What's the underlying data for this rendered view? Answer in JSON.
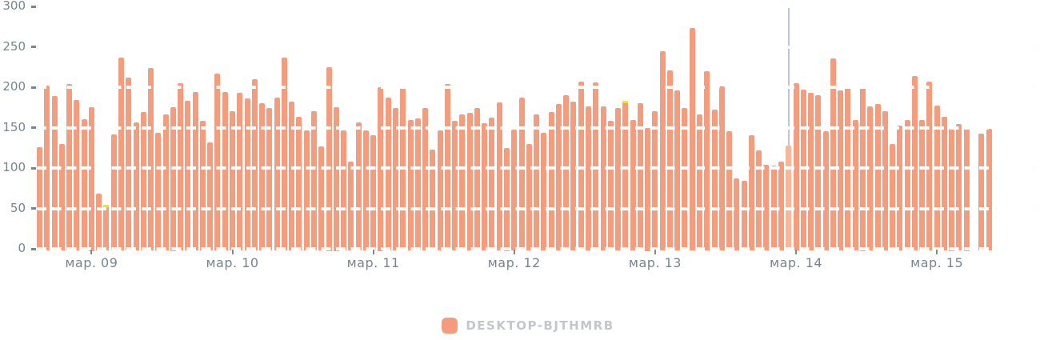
{
  "chart_data": {
    "type": "bar",
    "title": "",
    "xlabel": "",
    "ylabel": "",
    "ylim": [
      0,
      300
    ],
    "grid": "dashed-horizontal",
    "legend_position": "bottom-center",
    "y_ticks": [
      0,
      50,
      100,
      150,
      200,
      250,
      300
    ],
    "x_tick_labels": [
      "мар. 09",
      "мар. 10",
      "мар. 11",
      "мар. 12",
      "мар. 13",
      "мар. 14",
      "мар. 15"
    ],
    "x_tick_slots": [
      7,
      26,
      45,
      64,
      83,
      102,
      121
    ],
    "series": [
      {
        "name": "DESKTOP-BJTHMRB",
        "values": [
          126,
          202,
          189,
          130,
          204,
          184,
          160,
          175,
          68,
          53,
          142,
          237,
          212,
          156,
          169,
          224,
          144,
          166,
          175,
          205,
          183,
          194,
          158,
          132,
          217,
          194,
          170,
          193,
          186,
          210,
          180,
          174,
          187,
          237,
          182,
          163,
          147,
          170,
          127,
          225,
          175,
          147,
          108,
          156,
          147,
          141,
          200,
          187,
          174,
          199,
          159,
          161,
          174,
          123,
          147,
          204,
          158,
          166,
          168,
          174,
          155,
          162,
          181,
          125,
          148,
          187,
          130,
          166,
          144,
          169,
          179,
          190,
          182,
          207,
          176,
          206,
          176,
          158,
          174,
          182,
          159,
          180,
          150,
          170,
          245,
          221,
          196,
          174,
          273,
          166,
          220,
          172,
          201,
          146,
          87,
          84,
          141,
          122,
          104,
          103,
          108,
          128,
          205,
          197,
          193,
          190,
          146,
          236,
          196,
          199,
          159,
          200,
          176,
          179,
          170,
          130,
          152,
          159,
          214,
          159,
          207,
          177,
          163,
          150,
          154,
          150,
          null,
          143,
          149
        ]
      }
    ],
    "hover": {
      "highlighted_slot": 101,
      "highlighted_value": 128,
      "crosshair_slot": 101
    },
    "yellow_cap_slots": [
      9,
      79
    ],
    "colors": {
      "bar": "#f39c7e",
      "bar_highlight": "#f6b79a",
      "yellow_cap": "#e9e53e",
      "grid_dark": "#1c1c1c",
      "grid_light": "#ffffff",
      "axis_text": "#76858f",
      "tick": "#7b8a96",
      "crosshair": "#b9c7dd",
      "background": "#ffffff"
    }
  },
  "legend": {
    "label": "DESKTOP-BJTHMRB",
    "swatch_color": "#f39c7e"
  }
}
